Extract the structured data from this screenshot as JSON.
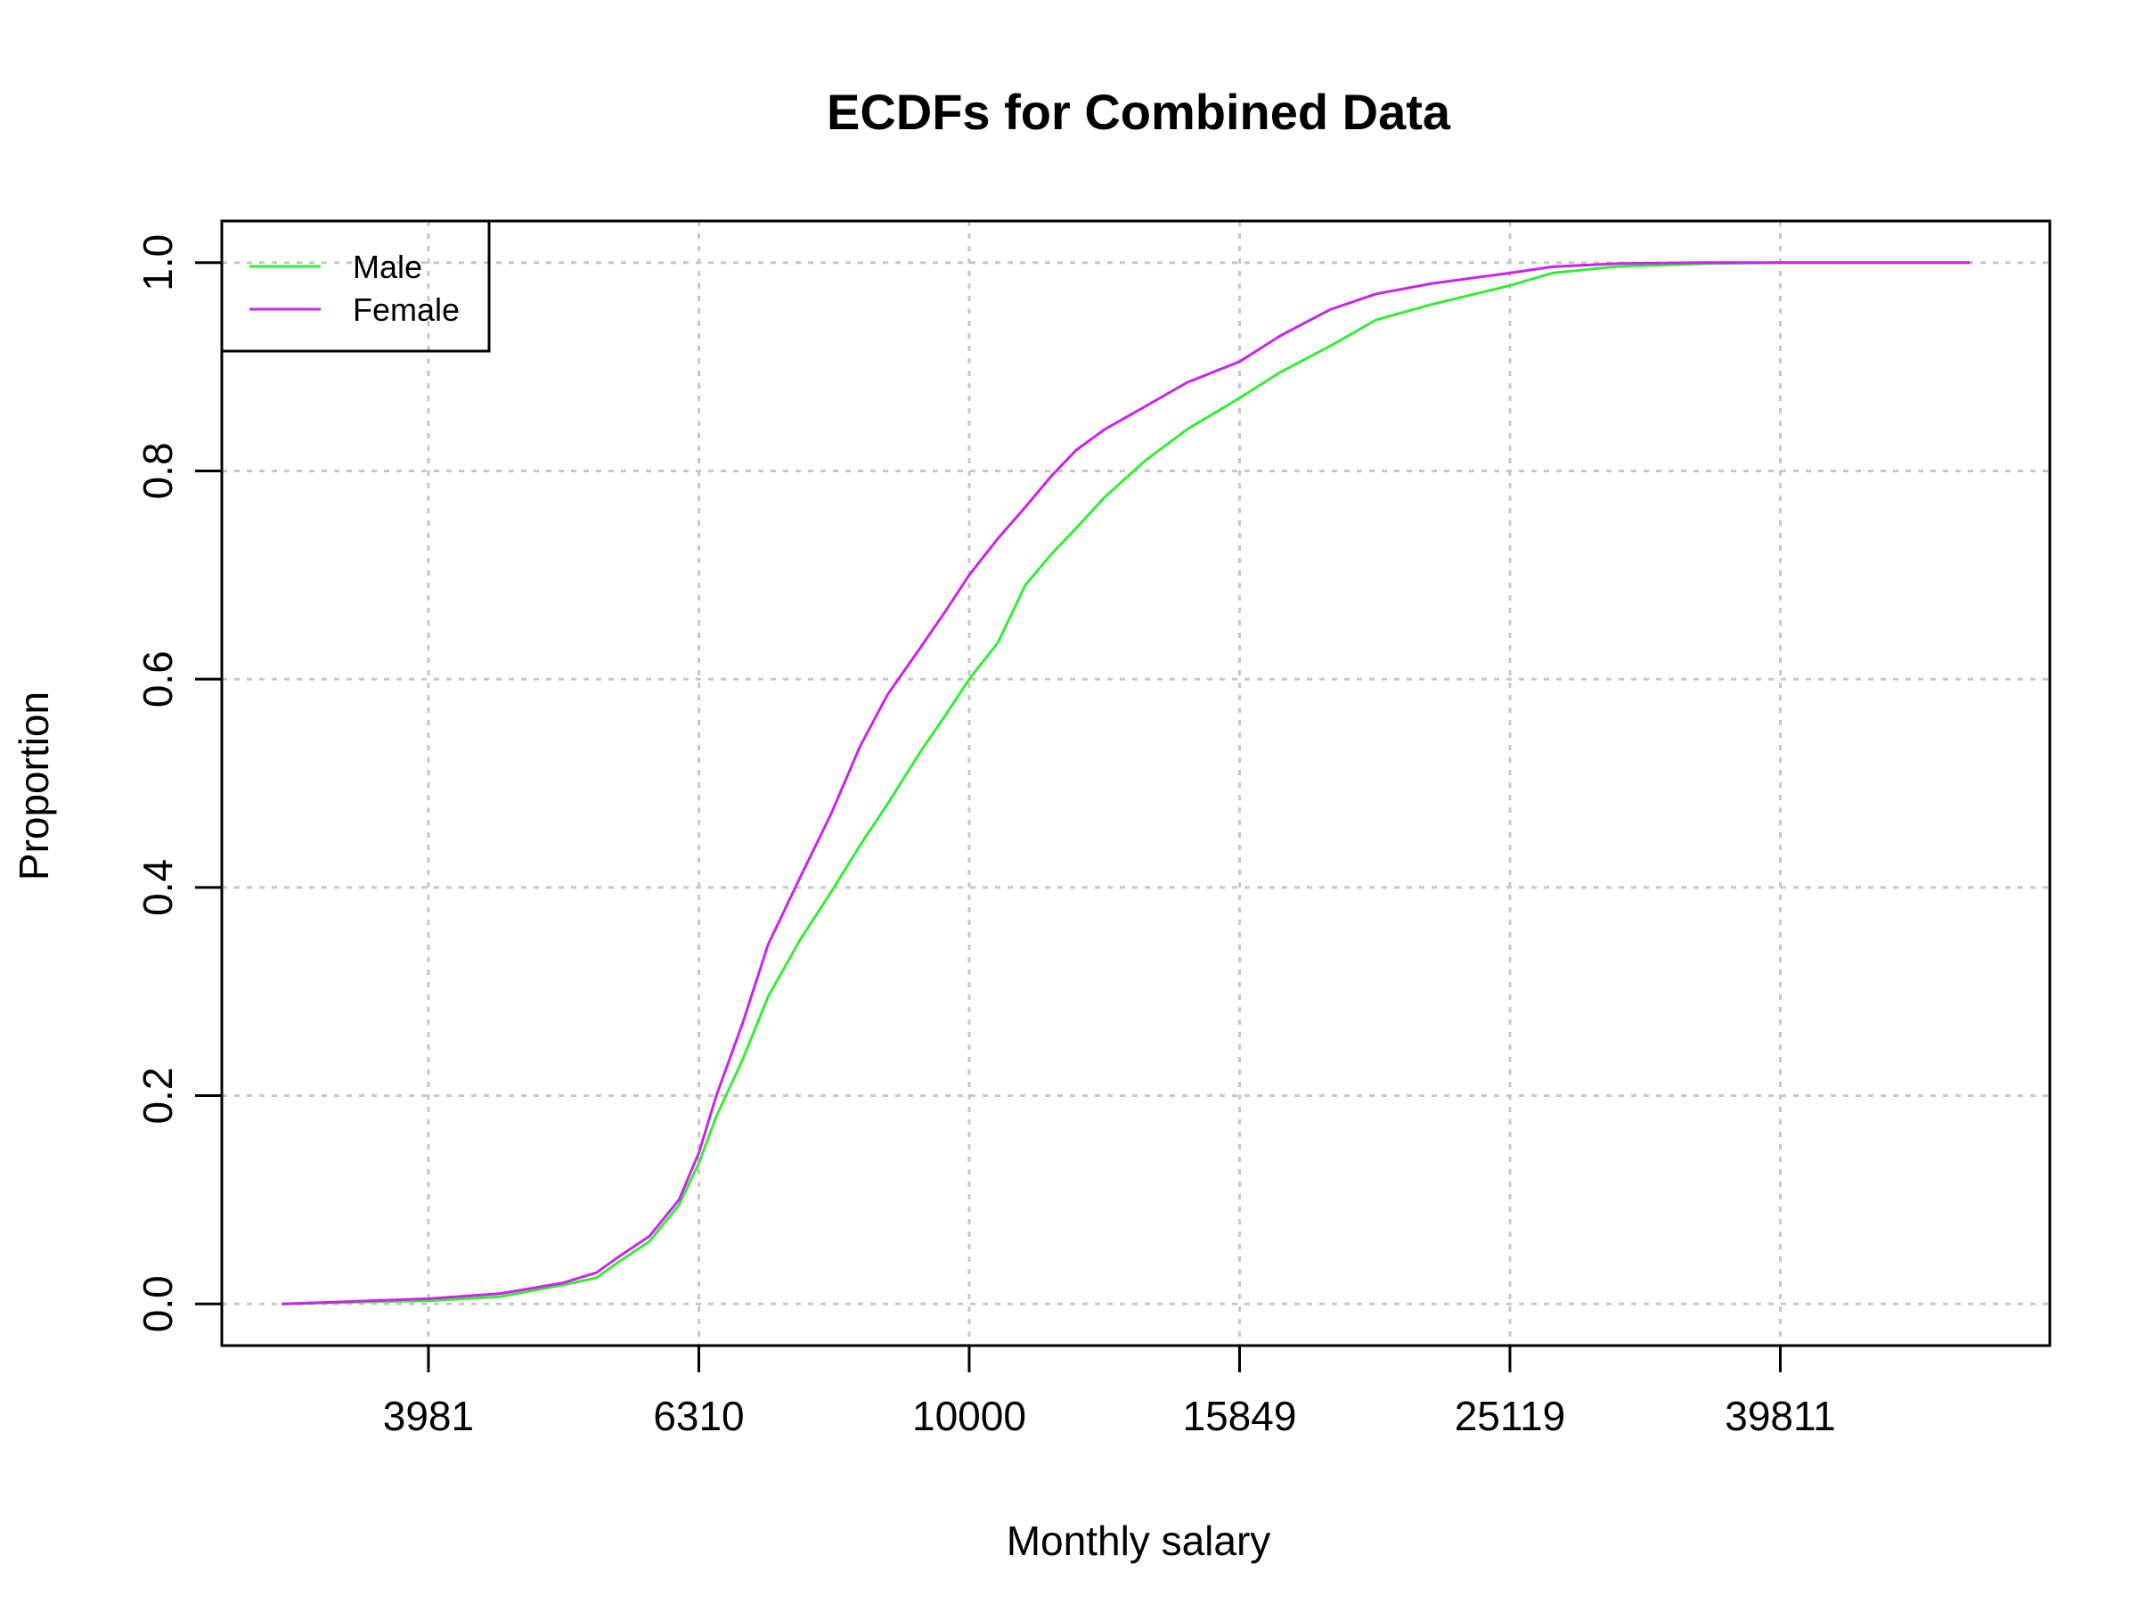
{
  "chart_data": {
    "type": "line",
    "title": "ECDFs for Combined Data",
    "xlabel": "Monthly salary",
    "ylabel": "Proportion",
    "x_scale": "log10",
    "xlim": [
      2800,
      63000
    ],
    "ylim": [
      -0.04,
      1.04
    ],
    "x_ticks": [
      3981,
      6310,
      10000,
      15849,
      25119,
      39811
    ],
    "x_tick_labels": [
      "3981",
      "6310",
      "10000",
      "15849",
      "25119",
      "39811"
    ],
    "y_ticks": [
      0.0,
      0.2,
      0.4,
      0.6,
      0.8,
      1.0
    ],
    "y_tick_labels": [
      "0.0",
      "0.2",
      "0.4",
      "0.6",
      "0.8",
      "1.0"
    ],
    "grid": true,
    "legend_position": "top-left",
    "series": [
      {
        "name": "Male",
        "color": "#33ee33",
        "x": [
          3100,
          3600,
          3981,
          4500,
          5000,
          5300,
          5500,
          5800,
          6100,
          6310,
          6500,
          6800,
          7100,
          7500,
          7900,
          8300,
          8700,
          9200,
          9600,
          10000,
          10500,
          11000,
          11500,
          12000,
          12600,
          13500,
          14500,
          15849,
          17000,
          18500,
          20000,
          22000,
          25119,
          27000,
          30000,
          35000,
          39811,
          45000,
          55000
        ],
        "values": [
          0.0,
          0.002,
          0.003,
          0.007,
          0.018,
          0.025,
          0.04,
          0.06,
          0.095,
          0.135,
          0.18,
          0.235,
          0.295,
          0.35,
          0.395,
          0.44,
          0.48,
          0.53,
          0.565,
          0.6,
          0.635,
          0.69,
          0.72,
          0.745,
          0.775,
          0.81,
          0.84,
          0.87,
          0.895,
          0.92,
          0.945,
          0.96,
          0.978,
          0.99,
          0.996,
          0.999,
          1.0,
          1.0,
          1.0
        ]
      },
      {
        "name": "Female",
        "color": "#cc22ee",
        "x": [
          3100,
          3600,
          3981,
          4500,
          5000,
          5300,
          5500,
          5800,
          6100,
          6310,
          6500,
          6800,
          7100,
          7500,
          7900,
          8300,
          8700,
          9200,
          9600,
          10000,
          10500,
          11000,
          11500,
          12000,
          12600,
          13500,
          14500,
          15849,
          17000,
          18500,
          20000,
          22000,
          25119,
          27000,
          30000,
          35000,
          39811,
          45000,
          55000
        ],
        "values": [
          0.0,
          0.003,
          0.005,
          0.01,
          0.02,
          0.03,
          0.045,
          0.065,
          0.1,
          0.145,
          0.2,
          0.27,
          0.345,
          0.41,
          0.47,
          0.535,
          0.585,
          0.63,
          0.665,
          0.7,
          0.735,
          0.765,
          0.795,
          0.82,
          0.84,
          0.862,
          0.885,
          0.905,
          0.93,
          0.955,
          0.97,
          0.98,
          0.99,
          0.996,
          0.999,
          1.0,
          1.0,
          1.0,
          1.0
        ]
      }
    ]
  }
}
